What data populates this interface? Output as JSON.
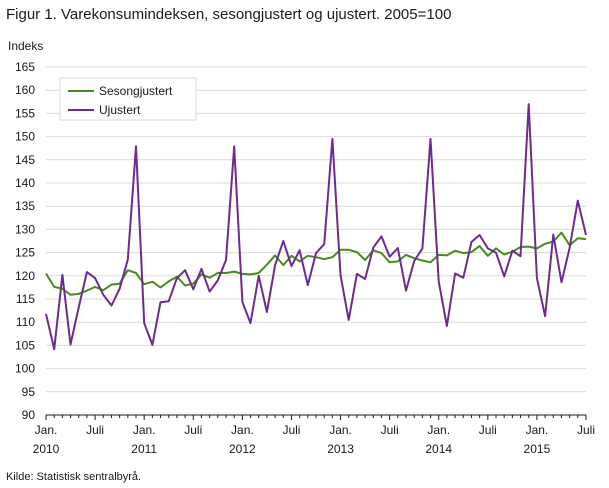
{
  "title": "Figur 1. Varekonsumindeksen, sesongjustert og ujustert. 2005=100",
  "source": "Kilde: Statistisk sentralbyrå.",
  "colors": {
    "sesongjustert": "#4a8a1c",
    "ujustert": "#6e2b8f",
    "grid": "#d9d9d9",
    "axis": "#1a1a1a"
  },
  "chart_data": {
    "type": "line",
    "ylabel": "Indeks",
    "xlabel": "",
    "ylim": [
      90,
      165
    ],
    "yticks": [
      90,
      95,
      100,
      105,
      110,
      115,
      120,
      125,
      130,
      135,
      140,
      145,
      150,
      155,
      160,
      165
    ],
    "grid": true,
    "legend_position": "top-left",
    "x_start": "2010-01",
    "x_ticks": [
      {
        "x": "2010-01",
        "lines": [
          "Jan.",
          "2010"
        ]
      },
      {
        "x": "2010-07",
        "lines": [
          "Juli"
        ]
      },
      {
        "x": "2011-01",
        "lines": [
          "Jan.",
          "2011"
        ]
      },
      {
        "x": "2011-07",
        "lines": [
          "Juli"
        ]
      },
      {
        "x": "2012-01",
        "lines": [
          "Jan.",
          "2012"
        ]
      },
      {
        "x": "2012-07",
        "lines": [
          "Juli"
        ]
      },
      {
        "x": "2013-01",
        "lines": [
          "Jan.",
          "2013"
        ]
      },
      {
        "x": "2013-07",
        "lines": [
          "Juli"
        ]
      },
      {
        "x": "2014-01",
        "lines": [
          "Jan.",
          "2014"
        ]
      },
      {
        "x": "2014-07",
        "lines": [
          "Juli"
        ]
      },
      {
        "x": "2015-01",
        "lines": [
          "Jan.",
          "2015"
        ]
      },
      {
        "x": "2015-07",
        "lines": [
          "Juli"
        ]
      }
    ],
    "series": [
      {
        "name": "Sesongjustert",
        "values": [
          120.5,
          117.6,
          117.2,
          115.9,
          116.1,
          116.8,
          117.6,
          116.9,
          118.1,
          118.3,
          121.2,
          120.6,
          118.2,
          118.7,
          117.5,
          118.8,
          119.8,
          117.9,
          118.3,
          120.3,
          119.6,
          120.6,
          120.6,
          120.9,
          120.4,
          120.3,
          120.6,
          122.4,
          124.4,
          122.3,
          124.3,
          123.1,
          124.3,
          124.0,
          123.6,
          124.0,
          125.6,
          125.6,
          125.1,
          123.4,
          125.5,
          124.9,
          122.9,
          123.1,
          124.5,
          123.8,
          123.3,
          122.9,
          124.5,
          124.4,
          125.4,
          124.9,
          125.1,
          126.4,
          124.3,
          125.9,
          124.6,
          125.2,
          126.2,
          126.3,
          125.9,
          126.9,
          127.4,
          129.3,
          126.6,
          128.1,
          127.9
        ]
      },
      {
        "name": "Ujustert",
        "values": [
          111.8,
          104.2,
          120.2,
          105.2,
          113.2,
          120.8,
          119.5,
          115.9,
          113.6,
          117.2,
          123.5,
          147.9,
          109.8,
          105.1,
          114.3,
          114.5,
          119.5,
          121.2,
          117.1,
          121.5,
          116.6,
          119.0,
          123.4,
          147.9,
          114.3,
          109.8,
          120.0,
          112.2,
          122.3,
          127.5,
          122.1,
          125.5,
          118.0,
          124.9,
          126.8,
          149.5,
          120.2,
          110.5,
          120.4,
          119.3,
          126.1,
          128.5,
          124.1,
          126.0,
          116.8,
          123.2,
          125.9,
          149.5,
          118.8,
          109.2,
          120.5,
          119.6,
          127.3,
          128.8,
          125.9,
          125.0,
          119.9,
          125.4,
          124.2,
          157.0,
          119.5,
          111.3,
          128.9,
          118.6,
          126.0,
          136.2,
          128.8
        ]
      }
    ]
  }
}
